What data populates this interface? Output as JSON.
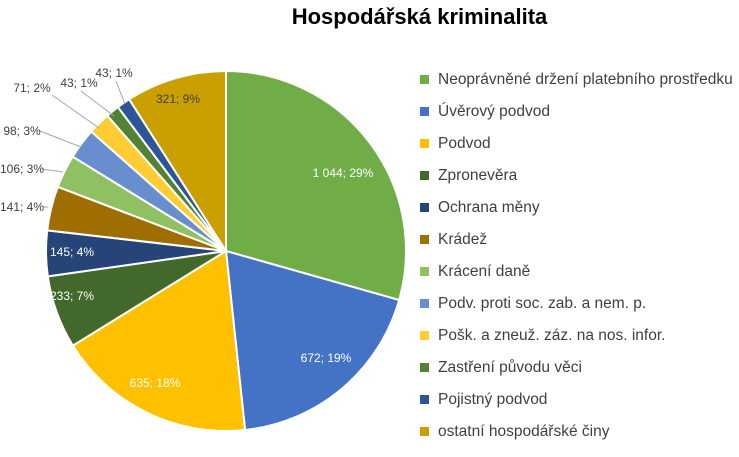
{
  "chart_data": {
    "type": "pie",
    "title": "Hospodářská kriminalita",
    "legend_position": "right",
    "slices": [
      {
        "name": "Neoprávněné držení platebního prostředku",
        "value": 1044,
        "label": "1 044; 29%",
        "color": "#70ad47"
      },
      {
        "name": "Úvěrový podvod",
        "value": 672,
        "label": "672; 19%",
        "color": "#4472c4"
      },
      {
        "name": "Podvod",
        "value": 635,
        "label": "635; 18%",
        "color": "#ffc000"
      },
      {
        "name": "Zpronevěra",
        "value": 233,
        "label": "233; 7%",
        "color": "#43682b"
      },
      {
        "name": "Ochrana měny",
        "value": 145,
        "label": "145; 4%",
        "color": "#264478"
      },
      {
        "name": "Krádež",
        "value": 141,
        "label": "141; 4%",
        "color": "#9e6f00"
      },
      {
        "name": "Krácení daně",
        "value": 106,
        "label": "106; 3%",
        "color": "#8fc163"
      },
      {
        "name": "Podv. proti soc. zab. a nem. p.",
        "value": 98,
        "label": "98; 3%",
        "color": "#698ed0"
      },
      {
        "name": "Pošk. a zneuž. záz. na nos. infor.",
        "value": 71,
        "label": "71; 2%",
        "color": "#ffcd33"
      },
      {
        "name": "Zastření původu věci",
        "value": 43,
        "label": "43; 1%",
        "color": "#548235"
      },
      {
        "name": "Pojistný podvod",
        "value": 43,
        "label": "43; 1%",
        "color": "#2f5597"
      },
      {
        "name": "ostatní hospodářské činy",
        "value": 321,
        "label": "321; 9%",
        "color": "#c9a000"
      }
    ]
  }
}
